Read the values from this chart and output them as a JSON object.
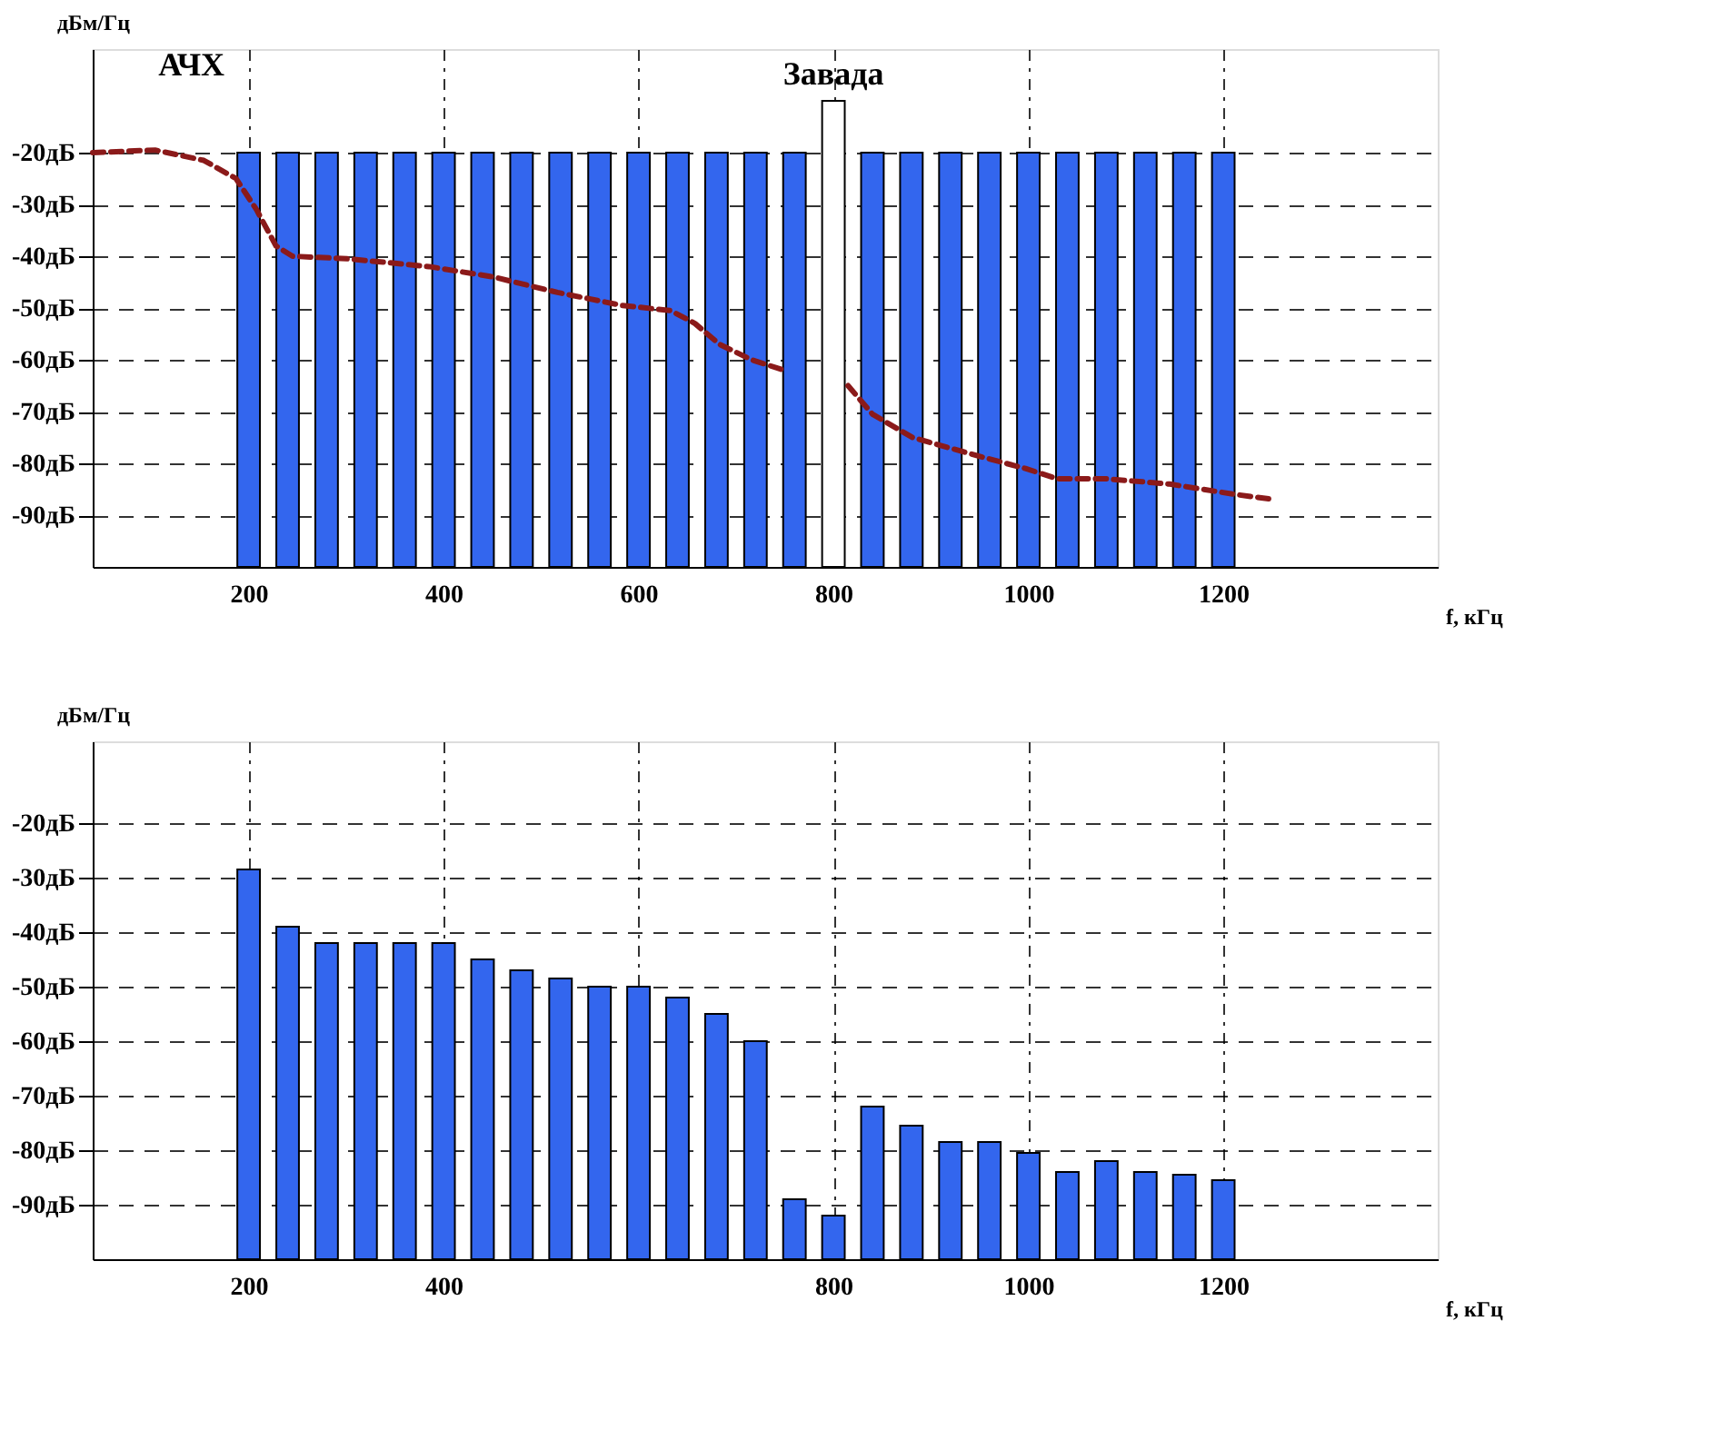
{
  "chart_data": [
    {
      "type": "bar",
      "ylabel": "дБм/Гц",
      "xlabel": "f, кГц",
      "x": [
        200,
        240,
        280,
        320,
        360,
        400,
        440,
        480,
        520,
        560,
        600,
        640,
        680,
        720,
        760,
        800,
        840,
        880,
        920,
        960,
        1000,
        1040,
        1080,
        1120,
        1160,
        1200
      ],
      "xlim": [
        40,
        1420
      ],
      "xticks": [
        200,
        400,
        600,
        800,
        1000,
        1200
      ],
      "ylim": [
        -100,
        0
      ],
      "yticks": [
        {
          "value": -20,
          "label": "-20дБ"
        },
        {
          "value": -30,
          "label": "-30дБ"
        },
        {
          "value": -40,
          "label": "-40дБ"
        },
        {
          "value": -50,
          "label": "-50дБ"
        },
        {
          "value": -60,
          "label": "-60дБ"
        },
        {
          "value": -70,
          "label": "-70дБ"
        },
        {
          "value": -80,
          "label": "-80дБ"
        },
        {
          "value": -90,
          "label": "-90дБ"
        }
      ],
      "grid": true,
      "annotations": [
        {
          "text": "Завада",
          "x": 800,
          "y": -10
        }
      ],
      "series": [
        {
          "colors": [
            "#3366ee",
            "#3366ee",
            "#3366ee",
            "#3366ee",
            "#3366ee",
            "#3366ee",
            "#3366ee",
            "#3366ee",
            "#3366ee",
            "#3366ee",
            "#3366ee",
            "#3366ee",
            "#3366ee",
            "#3366ee",
            "#3366ee",
            "#ffffff",
            "#3366ee",
            "#3366ee",
            "#3366ee",
            "#3366ee",
            "#3366ee",
            "#3366ee",
            "#3366ee",
            "#3366ee",
            "#3366ee",
            "#3366ee"
          ],
          "base": [
            -100,
            -100,
            -100,
            -100,
            -100,
            -100,
            -100,
            -100,
            -100,
            -100,
            -100,
            -100,
            -100,
            -100,
            -100,
            -100,
            -100,
            -100,
            -100,
            -100,
            -100,
            -100,
            -100,
            -100,
            -100,
            -100
          ],
          "values": [
            80,
            80,
            80,
            80,
            80,
            80,
            80,
            80,
            80,
            80,
            80,
            80,
            80,
            80,
            80,
            90,
            80,
            80,
            80,
            80,
            80,
            80,
            80,
            80,
            80,
            80
          ]
        },
        {
          "type": "line",
          "name": "АЧХ",
          "color": "#8b1a1a",
          "line_style": "dashed",
          "x": [
            40,
            104,
            154,
            187,
            208,
            228,
            245,
            302,
            385,
            451,
            517,
            583,
            633,
            658,
            683,
            716,
            749,
            780,
            815,
            840,
            881,
            947,
            997,
            1030,
            1080,
            1145,
            1212,
            1253
          ],
          "values": [
            -20,
            -19.5,
            -21.5,
            -25,
            -31,
            -38,
            -40,
            -40.5,
            -42,
            -44,
            -47,
            -49.5,
            -50.5,
            -53,
            -57,
            -60,
            -62,
            null,
            -65,
            -70.5,
            -75,
            -78.5,
            -81,
            -83,
            -83,
            -84,
            -86,
            -87
          ]
        }
      ]
    },
    {
      "type": "bar",
      "ylabel": "дБм/Гц",
      "xlabel": "f, кГц",
      "x": [
        200,
        240,
        280,
        320,
        360,
        400,
        440,
        480,
        520,
        560,
        600,
        640,
        680,
        720,
        760,
        800,
        840,
        880,
        920,
        960,
        1000,
        1040,
        1080,
        1120,
        1160,
        1200
      ],
      "xlim": [
        40,
        1420
      ],
      "xticks": [
        200,
        400,
        {
          "value": 600,
          "label": null
        },
        800,
        1000,
        1200
      ],
      "ylim": [
        -100,
        -5
      ],
      "yticks": [
        {
          "value": -20,
          "label": "-20дБ"
        },
        {
          "value": -30,
          "label": "-30дБ"
        },
        {
          "value": -40,
          "label": "-40дБ"
        },
        {
          "value": -50,
          "label": "-50дБ"
        },
        {
          "value": -60,
          "label": "-60дБ"
        },
        {
          "value": -70,
          "label": "-70дБ"
        },
        {
          "value": -80,
          "label": "-80дБ"
        },
        {
          "value": -90,
          "label": "-90дБ"
        }
      ],
      "grid": true,
      "series": [
        {
          "color": "#3366ee",
          "base": [
            -100,
            -100,
            -100,
            -100,
            -100,
            -100,
            -100,
            -100,
            -100,
            -100,
            -100,
            -100,
            -100,
            -100,
            -100,
            -100,
            -100,
            -100,
            -100,
            -100,
            -100,
            -100,
            -100,
            -100,
            -100,
            -100
          ],
          "values": [
            71.5,
            61,
            58,
            58,
            58,
            58,
            55,
            53,
            51.5,
            50,
            50,
            48,
            45,
            40,
            11,
            8,
            28,
            24.5,
            21.5,
            21.5,
            19.5,
            16,
            18,
            16,
            15.5,
            14.5
          ]
        }
      ]
    }
  ]
}
